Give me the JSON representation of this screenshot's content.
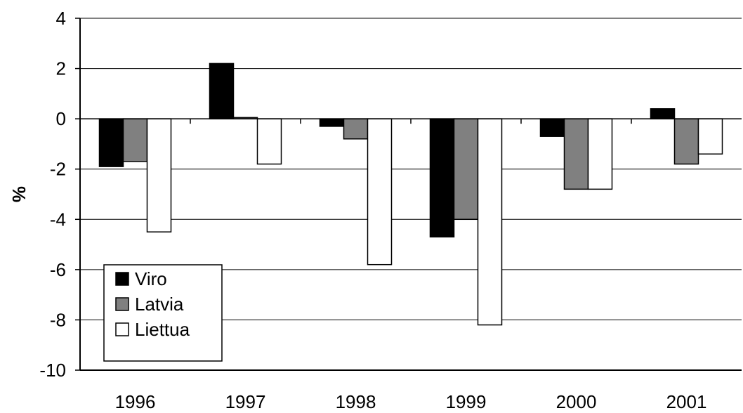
{
  "chart_data": {
    "type": "bar",
    "title": "",
    "xlabel": "",
    "ylabel": "%",
    "categories": [
      "1996",
      "1997",
      "1998",
      "1999",
      "2000",
      "2001"
    ],
    "series": [
      {
        "name": "Viro",
        "color": "#000000",
        "values": [
          -1.9,
          2.2,
          -0.3,
          -4.7,
          -0.7,
          0.4
        ]
      },
      {
        "name": "Latvia",
        "color": "#808080",
        "values": [
          -1.7,
          0.05,
          -0.8,
          -4.0,
          -2.8,
          -1.8
        ]
      },
      {
        "name": "Liettua",
        "color": "#ffffff",
        "values": [
          -4.5,
          -1.8,
          -5.8,
          -8.2,
          -2.8,
          -1.4
        ]
      }
    ],
    "ylim": [
      -10,
      4
    ],
    "yticks": [
      "4",
      "2",
      "0",
      "-2",
      "-4",
      "-6",
      "-8",
      "-10"
    ],
    "grid": true,
    "legend_position": "bottom-left"
  }
}
